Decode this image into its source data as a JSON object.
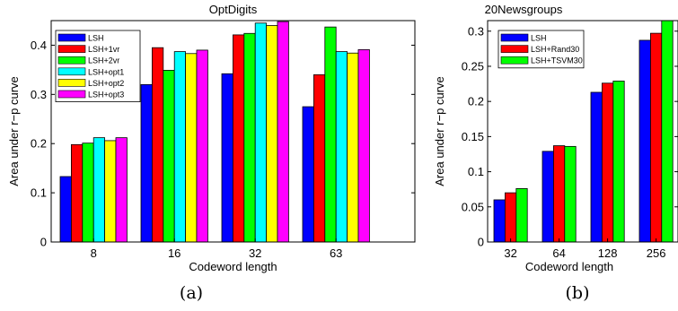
{
  "chart_data": [
    {
      "type": "bar",
      "title": "OptDigits",
      "xlabel": "Codeword length",
      "ylabel": "Area under r−p curve",
      "caption": "(a)",
      "categories": [
        "8",
        "16",
        "32",
        "63"
      ],
      "ylim": [
        0,
        0.45
      ],
      "yticks": [
        0,
        0.1,
        0.2,
        0.3,
        0.4
      ],
      "ytick_labels": [
        "0",
        "0.1",
        "0.2",
        "0.3",
        "0.4"
      ],
      "legend_position": "top-left",
      "grid": false,
      "series": [
        {
          "name": "LSH",
          "color": "#0000ff",
          "values": [
            0.133,
            0.32,
            0.342,
            0.275
          ]
        },
        {
          "name": "LSH+1vr",
          "color": "#ff0000",
          "values": [
            0.198,
            0.395,
            0.421,
            0.34
          ]
        },
        {
          "name": "LSH+2vr",
          "color": "#00ff00",
          "values": [
            0.201,
            0.349,
            0.424,
            0.437
          ]
        },
        {
          "name": "LSH+opt1",
          "color": "#00ffff",
          "values": [
            0.212,
            0.387,
            0.445,
            0.387
          ]
        },
        {
          "name": "LSH+opt2",
          "color": "#ffff00",
          "values": [
            0.206,
            0.383,
            0.44,
            0.384
          ]
        },
        {
          "name": "LSH+opt3",
          "color": "#ff00ff",
          "values": [
            0.212,
            0.39,
            0.448,
            0.391
          ]
        }
      ]
    },
    {
      "type": "bar",
      "title": "20Newsgroups",
      "xlabel": "Codeword length",
      "ylabel": "Area under r−p curve",
      "caption": "(b)",
      "categories": [
        "32",
        "64",
        "128",
        "256"
      ],
      "ylim": [
        0,
        0.315
      ],
      "yticks": [
        0,
        0.05,
        0.1,
        0.15,
        0.2,
        0.25,
        0.3
      ],
      "ytick_labels": [
        "0",
        "0.05",
        "0.1",
        "0.15",
        "0.2",
        "0.25",
        "0.3"
      ],
      "legend_position": "top-left",
      "grid": false,
      "series": [
        {
          "name": "LSH",
          "color": "#0000ff",
          "values": [
            0.06,
            0.129,
            0.213,
            0.287
          ]
        },
        {
          "name": "LSH+Rand30",
          "color": "#ff0000",
          "values": [
            0.07,
            0.137,
            0.226,
            0.297
          ]
        },
        {
          "name": "LSH+TSVM30",
          "color": "#00ff00",
          "values": [
            0.076,
            0.136,
            0.229,
            0.315
          ]
        }
      ]
    }
  ]
}
